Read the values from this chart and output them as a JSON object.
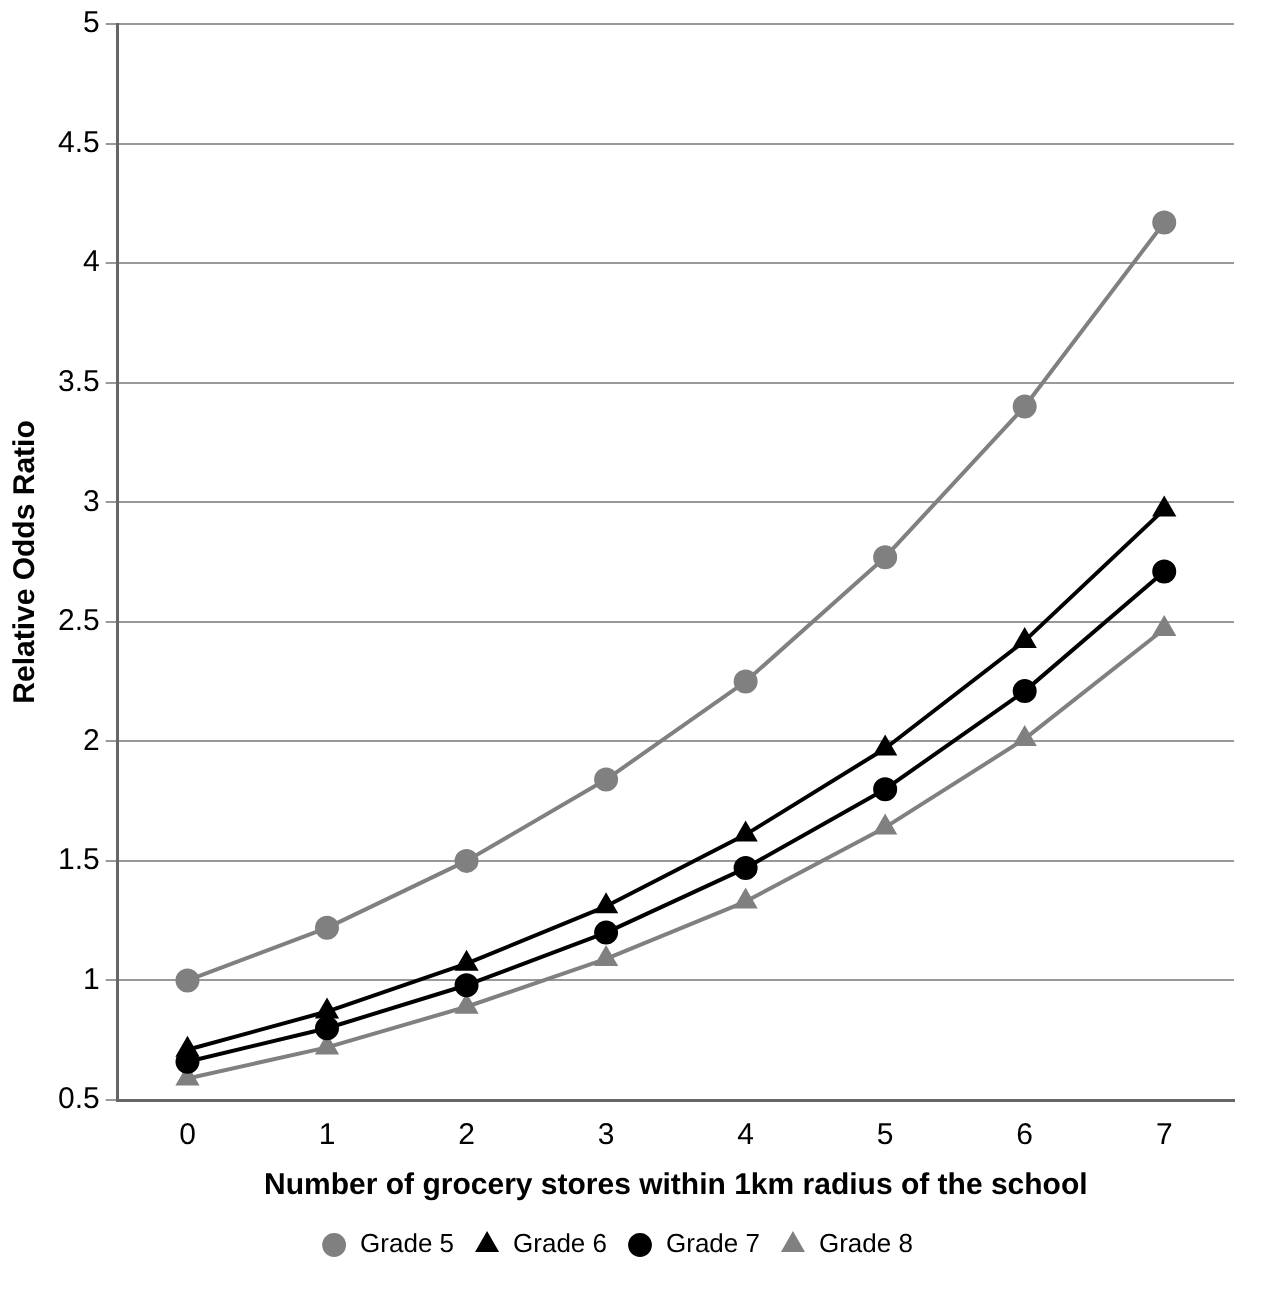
{
  "chart_data": {
    "type": "line",
    "xlabel": "Number of grocery stores within 1km radius of the school",
    "ylabel": "Relative Odds Ratio",
    "categories": [
      "0",
      "1",
      "2",
      "3",
      "4",
      "5",
      "6",
      "7"
    ],
    "series": [
      {
        "name": "Grade 5",
        "color": "#808080",
        "marker": "circle",
        "values": [
          1.0,
          1.22,
          1.5,
          1.84,
          2.25,
          2.77,
          3.4,
          4.17
        ]
      },
      {
        "name": "Grade 6",
        "color": "#000000",
        "marker": "triangle",
        "values": [
          0.71,
          0.87,
          1.07,
          1.31,
          1.61,
          1.97,
          2.42,
          2.97
        ]
      },
      {
        "name": "Grade 7",
        "color": "#000000",
        "marker": "circle",
        "values": [
          0.66,
          0.8,
          0.98,
          1.2,
          1.47,
          1.8,
          2.21,
          2.71
        ]
      },
      {
        "name": "Grade 8",
        "color": "#808080",
        "marker": "triangle",
        "values": [
          0.59,
          0.72,
          0.89,
          1.09,
          1.33,
          1.64,
          2.01,
          2.47
        ]
      }
    ],
    "ylim": [
      0.5,
      5
    ],
    "yticks": [
      0.5,
      1,
      1.5,
      2,
      2.5,
      3,
      3.5,
      4,
      4.5,
      5
    ],
    "grid": "y",
    "legend": "bottom",
    "line_style": "solid"
  }
}
